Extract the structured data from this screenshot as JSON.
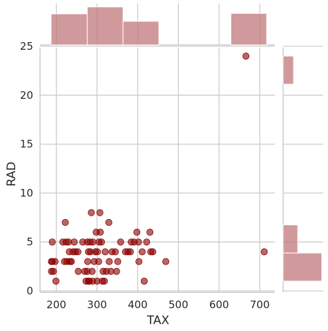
{
  "chart_data": {
    "type": "scatter",
    "subtype": "jointplot",
    "xlabel": "TAX",
    "ylabel": "RAD",
    "xlim": [
      160,
      737
    ],
    "ylim": [
      0,
      25
    ],
    "xticks": [
      200,
      300,
      400,
      500,
      600,
      700
    ],
    "yticks": [
      0,
      5,
      10,
      15,
      20,
      25
    ],
    "grid": true,
    "color": "#8b0000",
    "hist_color": "#c0787b",
    "points": [
      [
        188,
        2
      ],
      [
        188,
        3
      ],
      [
        190,
        3
      ],
      [
        190,
        5
      ],
      [
        193,
        2
      ],
      [
        197,
        3
      ],
      [
        199,
        1
      ],
      [
        216,
        5
      ],
      [
        220,
        3
      ],
      [
        222,
        7
      ],
      [
        224,
        5
      ],
      [
        226,
        3
      ],
      [
        230,
        5
      ],
      [
        232,
        4
      ],
      [
        233,
        3
      ],
      [
        237,
        3
      ],
      [
        241,
        4
      ],
      [
        244,
        5
      ],
      [
        247,
        4
      ],
      [
        253,
        4
      ],
      [
        254,
        2
      ],
      [
        265,
        5
      ],
      [
        270,
        2
      ],
      [
        273,
        1
      ],
      [
        276,
        2
      ],
      [
        276,
        5
      ],
      [
        277,
        3
      ],
      [
        279,
        1
      ],
      [
        279,
        4
      ],
      [
        281,
        1
      ],
      [
        283,
        5
      ],
      [
        284,
        4
      ],
      [
        286,
        8
      ],
      [
        288,
        2
      ],
      [
        289,
        1
      ],
      [
        290,
        5
      ],
      [
        293,
        3
      ],
      [
        296,
        4
      ],
      [
        298,
        6
      ],
      [
        300,
        1
      ],
      [
        301,
        4
      ],
      [
        304,
        3
      ],
      [
        305,
        5
      ],
      [
        307,
        8
      ],
      [
        308,
        6
      ],
      [
        311,
        5
      ],
      [
        313,
        1
      ],
      [
        315,
        2
      ],
      [
        318,
        1
      ],
      [
        320,
        4
      ],
      [
        323,
        2
      ],
      [
        329,
        7
      ],
      [
        330,
        3
      ],
      [
        334,
        2
      ],
      [
        337,
        4
      ],
      [
        345,
        4
      ],
      [
        348,
        2
      ],
      [
        351,
        3
      ],
      [
        358,
        5
      ],
      [
        370,
        4
      ],
      [
        376,
        4
      ],
      [
        382,
        4
      ],
      [
        384,
        5
      ],
      [
        391,
        5
      ],
      [
        398,
        6
      ],
      [
        402,
        5
      ],
      [
        403,
        3
      ],
      [
        411,
        4
      ],
      [
        416,
        1
      ],
      [
        422,
        5
      ],
      [
        430,
        6
      ],
      [
        432,
        4
      ],
      [
        437,
        4
      ],
      [
        469,
        3
      ],
      [
        666,
        24
      ],
      [
        711,
        4
      ]
    ],
    "x_histogram": {
      "bin_edges": [
        187,
        276,
        364,
        452,
        540,
        629,
        717
      ],
      "counts": [
        67,
        82,
        51,
        0,
        0,
        68
      ]
    },
    "y_histogram": {
      "bin_edges": [
        1,
        3.875,
        6.75,
        9.625,
        12.5,
        15.375,
        18.25,
        21.125,
        24
      ],
      "counts": [
        185,
        70,
        0,
        0,
        0,
        0,
        0,
        50
      ]
    }
  }
}
